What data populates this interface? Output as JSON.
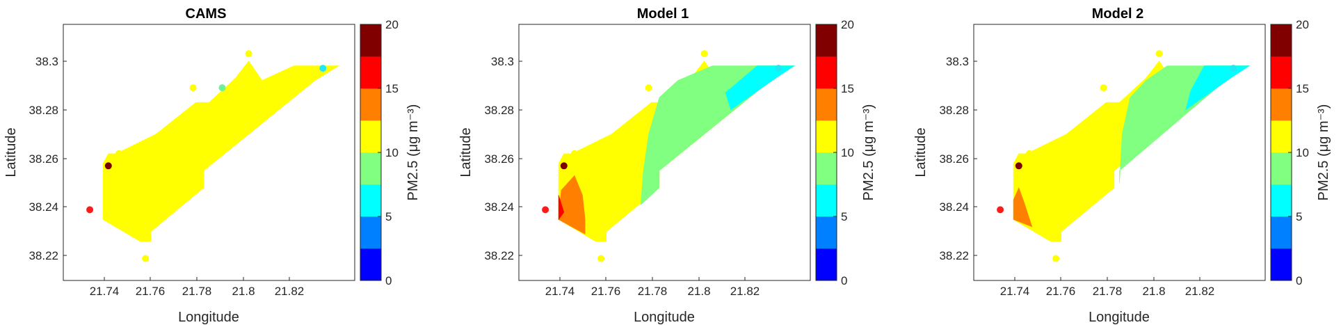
{
  "chart_data": [
    {
      "type": "contour-map",
      "title": "CAMS",
      "xlabel": "Longitude",
      "ylabel": "Latitude",
      "xlim": [
        21.725,
        21.835
      ],
      "ylim": [
        38.21,
        38.315
      ],
      "xticks": [
        "21.74",
        "21.76",
        "21.78",
        "21.8",
        "21.82"
      ],
      "yticks": [
        "38.22",
        "38.24",
        "38.26",
        "38.28",
        "38.3"
      ],
      "regions": [
        {
          "level_color": "#FFFF00",
          "polygon": [
            [
              21.74,
              38.243
            ],
            [
              21.74,
              38.235
            ],
            [
              21.754,
              38.226
            ],
            [
              21.758,
              38.226
            ],
            [
              21.758,
              38.23
            ],
            [
              21.778,
              38.248
            ],
            [
              21.778,
              38.255
            ],
            [
              21.82,
              38.292
            ],
            [
              21.829,
              38.298
            ],
            [
              21.812,
              38.298
            ],
            [
              21.8,
              38.292
            ],
            [
              21.795,
              38.3
            ],
            [
              21.79,
              38.293
            ],
            [
              21.78,
              38.283
            ],
            [
              21.775,
              38.283
            ],
            [
              21.76,
              38.27
            ],
            [
              21.745,
              38.262
            ],
            [
              21.742,
              38.262
            ],
            [
              21.74,
              38.258
            ]
          ]
        }
      ],
      "stations": [
        {
          "lon": 21.735,
          "lat": 38.239,
          "color": "#FF1A1A"
        },
        {
          "lon": 21.742,
          "lat": 38.257,
          "color": "#7A0000"
        },
        {
          "lon": 21.746,
          "lat": 38.262,
          "color": "#FFFF00"
        },
        {
          "lon": 21.756,
          "lat": 38.219,
          "color": "#FFFF00"
        },
        {
          "lon": 21.774,
          "lat": 38.289,
          "color": "#FFFF00"
        },
        {
          "lon": 21.785,
          "lat": 38.289,
          "color": "#6EF09A"
        },
        {
          "lon": 21.795,
          "lat": 38.303,
          "color": "#FFFF00"
        },
        {
          "lon": 21.823,
          "lat": 38.297,
          "color": "#22E8F5"
        }
      ]
    },
    {
      "type": "contour-map",
      "title": "Model 1",
      "xlabel": "Longitude",
      "ylabel": "Latitude",
      "xlim": [
        21.725,
        21.835
      ],
      "ylim": [
        38.21,
        38.315
      ],
      "xticks": [
        "21.74",
        "21.76",
        "21.78",
        "21.8",
        "21.82"
      ],
      "yticks": [
        "38.22",
        "38.24",
        "38.26",
        "38.28",
        "38.3"
      ],
      "regions": [
        {
          "level_color": "#FFFF00",
          "polygon": [
            [
              21.74,
              38.243
            ],
            [
              21.74,
              38.235
            ],
            [
              21.754,
              38.226
            ],
            [
              21.758,
              38.226
            ],
            [
              21.758,
              38.23
            ],
            [
              21.778,
              38.248
            ],
            [
              21.778,
              38.255
            ],
            [
              21.82,
              38.292
            ],
            [
              21.829,
              38.298
            ],
            [
              21.812,
              38.298
            ],
            [
              21.8,
              38.292
            ],
            [
              21.795,
              38.3
            ],
            [
              21.79,
              38.293
            ],
            [
              21.78,
              38.283
            ],
            [
              21.775,
              38.283
            ],
            [
              21.76,
              38.27
            ],
            [
              21.745,
              38.262
            ],
            [
              21.742,
              38.262
            ],
            [
              21.74,
              38.258
            ]
          ]
        },
        {
          "level_color": "#80FF80",
          "polygon": [
            [
              21.771,
              38.241
            ],
            [
              21.778,
              38.248
            ],
            [
              21.778,
              38.255
            ],
            [
              21.82,
              38.292
            ],
            [
              21.829,
              38.298
            ],
            [
              21.812,
              38.298
            ],
            [
              21.798,
              38.298
            ],
            [
              21.785,
              38.292
            ],
            [
              21.778,
              38.285
            ],
            [
              21.774,
              38.27
            ],
            [
              21.772,
              38.255
            ]
          ]
        },
        {
          "level_color": "#00FFFF",
          "polygon": [
            [
              21.815,
              38.298
            ],
            [
              21.829,
              38.298
            ],
            [
              21.822,
              38.293
            ],
            [
              21.805,
              38.28
            ],
            [
              21.803,
              38.287
            ]
          ]
        },
        {
          "level_color": "#FF8000",
          "polygon": [
            [
              21.741,
              38.247
            ],
            [
              21.746,
              38.253
            ],
            [
              21.749,
              38.245
            ],
            [
              21.75,
              38.235
            ],
            [
              21.75,
              38.229
            ],
            [
              21.74,
              38.235
            ]
          ]
        },
        {
          "level_color": "#FF0000",
          "polygon": [
            [
              21.74,
              38.235
            ],
            [
              21.74,
              38.245
            ],
            [
              21.742,
              38.238
            ]
          ]
        }
      ],
      "stations": [
        {
          "lon": 21.735,
          "lat": 38.239,
          "color": "#FF1A1A"
        },
        {
          "lon": 21.742,
          "lat": 38.257,
          "color": "#7A0000"
        },
        {
          "lon": 21.746,
          "lat": 38.262,
          "color": "#FFFF00"
        },
        {
          "lon": 21.756,
          "lat": 38.219,
          "color": "#FFFF00"
        },
        {
          "lon": 21.774,
          "lat": 38.289,
          "color": "#FFFF00"
        },
        {
          "lon": 21.795,
          "lat": 38.303,
          "color": "#FFFF00"
        },
        {
          "lon": 21.823,
          "lat": 38.297,
          "color": "#22E8F5"
        }
      ]
    },
    {
      "type": "contour-map",
      "title": "Model 2",
      "xlabel": "Longitude",
      "ylabel": "Latitude",
      "xlim": [
        21.725,
        21.835
      ],
      "ylim": [
        38.21,
        38.315
      ],
      "xticks": [
        "21.74",
        "21.76",
        "21.78",
        "21.8",
        "21.82"
      ],
      "yticks": [
        "38.22",
        "38.24",
        "38.26",
        "38.28",
        "38.3"
      ],
      "regions": [
        {
          "level_color": "#FFFF00",
          "polygon": [
            [
              21.74,
              38.243
            ],
            [
              21.74,
              38.235
            ],
            [
              21.754,
              38.226
            ],
            [
              21.758,
              38.226
            ],
            [
              21.758,
              38.23
            ],
            [
              21.778,
              38.248
            ],
            [
              21.778,
              38.255
            ],
            [
              21.82,
              38.292
            ],
            [
              21.829,
              38.298
            ],
            [
              21.812,
              38.298
            ],
            [
              21.8,
              38.292
            ],
            [
              21.795,
              38.3
            ],
            [
              21.79,
              38.293
            ],
            [
              21.78,
              38.283
            ],
            [
              21.775,
              38.283
            ],
            [
              21.76,
              38.27
            ],
            [
              21.745,
              38.262
            ],
            [
              21.742,
              38.262
            ],
            [
              21.74,
              38.258
            ]
          ]
        },
        {
          "level_color": "#80FF80",
          "polygon": [
            [
              21.78,
              38.25
            ],
            [
              21.78,
              38.255
            ],
            [
              21.82,
              38.292
            ],
            [
              21.829,
              38.298
            ],
            [
              21.812,
              38.298
            ],
            [
              21.798,
              38.298
            ],
            [
              21.79,
              38.292
            ],
            [
              21.784,
              38.285
            ],
            [
              21.781,
              38.27
            ]
          ]
        },
        {
          "level_color": "#00FFFF",
          "polygon": [
            [
              21.812,
              38.298
            ],
            [
              21.829,
              38.298
            ],
            [
              21.822,
              38.293
            ],
            [
              21.805,
              38.28
            ],
            [
              21.807,
              38.288
            ]
          ]
        },
        {
          "level_color": "#FF8000",
          "polygon": [
            [
              21.74,
              38.243
            ],
            [
              21.742,
              38.248
            ],
            [
              21.744,
              38.242
            ],
            [
              21.747,
              38.232
            ],
            [
              21.74,
              38.235
            ]
          ]
        }
      ],
      "stations": [
        {
          "lon": 21.735,
          "lat": 38.239,
          "color": "#FF1A1A"
        },
        {
          "lon": 21.742,
          "lat": 38.257,
          "color": "#7A0000"
        },
        {
          "lon": 21.746,
          "lat": 38.262,
          "color": "#FFFF00"
        },
        {
          "lon": 21.756,
          "lat": 38.219,
          "color": "#FFFF00"
        },
        {
          "lon": 21.774,
          "lat": 38.289,
          "color": "#FFFF00"
        },
        {
          "lon": 21.795,
          "lat": 38.303,
          "color": "#FFFF00"
        },
        {
          "lon": 21.823,
          "lat": 38.297,
          "color": "#22E8F5"
        }
      ]
    }
  ],
  "colorbar": {
    "label": "PM2.5 (μg m⁻³)",
    "range": [
      0,
      20
    ],
    "ticks": [
      "0",
      "5",
      "10",
      "15",
      "20"
    ],
    "colors": [
      "#0000FF",
      "#0080FF",
      "#00FFFF",
      "#80FF80",
      "#FFFF00",
      "#FF8000",
      "#FF0000",
      "#800000"
    ]
  }
}
